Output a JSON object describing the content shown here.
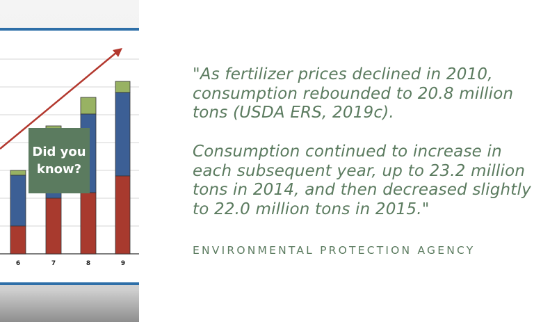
{
  "illustration": {
    "badge": "Did you\nknow?",
    "x_labels": [
      "6",
      "7",
      "8",
      "9"
    ],
    "colors": {
      "red": "#a83a2e",
      "blue": "#3c5f95",
      "green": "#98b263",
      "board_blue": "#2e6fa8",
      "arrow": "#b3382e",
      "accent": "#5b7b5f"
    }
  },
  "quote": {
    "paragraph1": [
      "\"As fertilizer prices declined in 2010,",
      "consumption rebounded to 20.8 million",
      "tons (USDA ERS, 2019c)."
    ],
    "paragraph2": [
      "Consumption continued to increase in",
      "each subsequent year, up to 23.2 million",
      "tons in 2014, and then decreased slightly",
      "to 22.0 million tons in 2015.\""
    ]
  },
  "source": "ENVIRONMENTAL PROTECTION AGENCY"
}
